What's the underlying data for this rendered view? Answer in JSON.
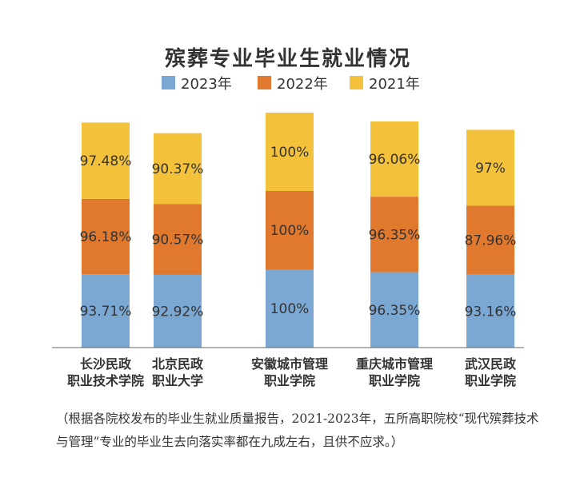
{
  "chart_data": {
    "type": "bar",
    "stacked": true,
    "title": "殡葬专业毕业生就业情况",
    "categories": [
      [
        "长沙民政",
        "职业技术学院"
      ],
      [
        "北京民政",
        "职业大学"
      ],
      [
        "安徽城市管理",
        "职业学院"
      ],
      [
        "重庆城市管理",
        "职业学院"
      ],
      [
        "武汉民政",
        "职业学院"
      ]
    ],
    "series": [
      {
        "name": "2023年",
        "color": "#7ba7d3",
        "values": [
          93.71,
          92.92,
          100,
          96.35,
          93.16
        ],
        "labels": [
          "93.71%",
          "92.92%",
          "100%",
          "96.35%",
          "93.16%"
        ]
      },
      {
        "name": "2022年",
        "color": "#e0792e",
        "values": [
          96.18,
          90.57,
          100,
          96.35,
          87.96
        ],
        "labels": [
          "96.18%",
          "90.57%",
          "100%",
          "96.35%",
          "87.96%"
        ]
      },
      {
        "name": "2021年",
        "color": "#f3c13a",
        "values": [
          97.48,
          90.37,
          100,
          96.06,
          97
        ],
        "labels": [
          "97.48%",
          "90.37%",
          "100%",
          "96.06%",
          "97%"
        ]
      }
    ],
    "legend_position": "top",
    "grid": false
  },
  "footnote": "（根据各院校发布的毕业生就业质量报告，2021-2023年，五所高职院校“现代殡葬技术与管理”专业的毕业生去向落实率都在九成左右，且供不应求。）"
}
